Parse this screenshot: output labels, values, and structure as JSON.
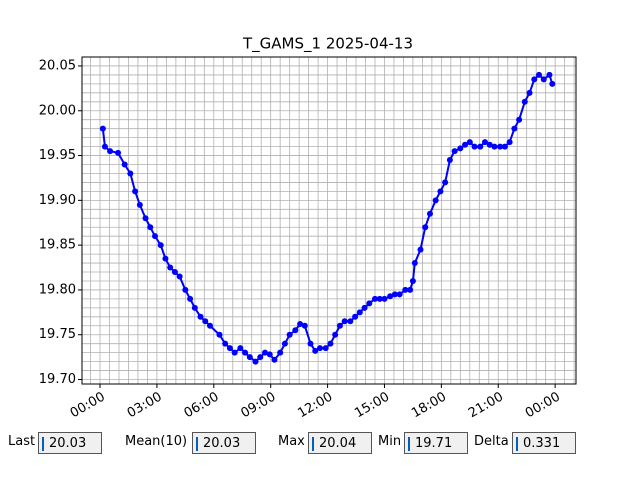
{
  "chart_data": {
    "type": "line",
    "title": "T_GAMS_1 2025-04-13",
    "x": [
      0.15,
      0.26,
      0.53,
      0.95,
      1.3,
      1.6,
      1.85,
      2.1,
      2.4,
      2.65,
      2.9,
      3.2,
      3.45,
      3.7,
      3.95,
      4.2,
      4.5,
      4.75,
      5.0,
      5.3,
      5.55,
      5.8,
      6.3,
      6.6,
      6.85,
      7.1,
      7.4,
      7.65,
      7.9,
      8.2,
      8.45,
      8.7,
      8.95,
      9.2,
      9.5,
      9.75,
      10.0,
      10.3,
      10.55,
      10.8,
      11.1,
      11.35,
      11.6,
      11.9,
      12.15,
      12.4,
      12.65,
      12.9,
      13.2,
      13.45,
      13.7,
      13.95,
      14.2,
      14.5,
      14.75,
      15.0,
      15.3,
      15.55,
      15.8,
      16.1,
      16.35,
      16.5,
      16.6,
      16.9,
      17.15,
      17.4,
      17.7,
      17.95,
      18.2,
      18.45,
      18.7,
      19.0,
      19.25,
      19.5,
      19.75,
      20.05,
      20.3,
      20.55,
      20.8,
      21.1,
      21.35,
      21.6,
      21.85,
      22.1,
      22.4,
      22.65,
      22.9,
      23.15,
      23.4,
      23.7,
      23.85
    ],
    "series": [
      {
        "name": "T_GAMS_1",
        "color": "#0000ff",
        "values": [
          19.98,
          19.96,
          19.955,
          19.953,
          19.94,
          19.93,
          19.91,
          19.895,
          19.88,
          19.87,
          19.86,
          19.85,
          19.835,
          19.825,
          19.82,
          19.815,
          19.8,
          19.79,
          19.78,
          19.77,
          19.765,
          19.76,
          19.75,
          19.74,
          19.735,
          19.73,
          19.735,
          19.73,
          19.725,
          19.72,
          19.725,
          19.73,
          19.728,
          19.722,
          19.73,
          19.74,
          19.75,
          19.755,
          19.762,
          19.76,
          19.74,
          19.732,
          19.735,
          19.735,
          19.74,
          19.75,
          19.76,
          19.765,
          19.765,
          19.77,
          19.775,
          19.78,
          19.785,
          19.79,
          19.79,
          19.79,
          19.793,
          19.795,
          19.795,
          19.8,
          19.8,
          19.81,
          19.83,
          19.845,
          19.87,
          19.885,
          19.9,
          19.91,
          19.92,
          19.945,
          19.955,
          19.958,
          19.962,
          19.965,
          19.96,
          19.96,
          19.965,
          19.962,
          19.96,
          19.96,
          19.96,
          19.965,
          19.98,
          19.99,
          20.01,
          20.02,
          20.035,
          20.04,
          20.035,
          20.04,
          20.03
        ]
      }
    ],
    "xlim": [
      -0.95,
      25.1
    ],
    "xticks": [
      {
        "value": 0,
        "label": "00:00"
      },
      {
        "value": 3,
        "label": "03:00"
      },
      {
        "value": 6,
        "label": "06:00"
      },
      {
        "value": 9,
        "label": "09:00"
      },
      {
        "value": 12,
        "label": "12:00"
      },
      {
        "value": 15,
        "label": "15:00"
      },
      {
        "value": 18,
        "label": "18:00"
      },
      {
        "value": 21,
        "label": "21:00"
      },
      {
        "value": 24,
        "label": "00:00"
      }
    ],
    "ylim": [
      19.695,
      20.06
    ],
    "yticks": [
      {
        "value": 19.7,
        "label": "19.70"
      },
      {
        "value": 19.75,
        "label": "19.75"
      },
      {
        "value": 19.8,
        "label": "19.80"
      },
      {
        "value": 19.85,
        "label": "19.85"
      },
      {
        "value": 19.9,
        "label": "19.90"
      },
      {
        "value": 19.95,
        "label": "19.95"
      },
      {
        "value": 20.0,
        "label": "20.00"
      },
      {
        "value": 20.05,
        "label": "20.05"
      }
    ],
    "grid": true,
    "minor_grid_step": {
      "x": 0.5,
      "y": 0.01
    }
  },
  "readouts": [
    {
      "label": "Last",
      "value": "20.03"
    },
    {
      "label": "Mean(10)",
      "value": "20.03"
    },
    {
      "label": "Max",
      "value": "20.04"
    },
    {
      "label": "Min",
      "value": "19.71"
    },
    {
      "label": "Delta",
      "value": "0.331"
    }
  ]
}
